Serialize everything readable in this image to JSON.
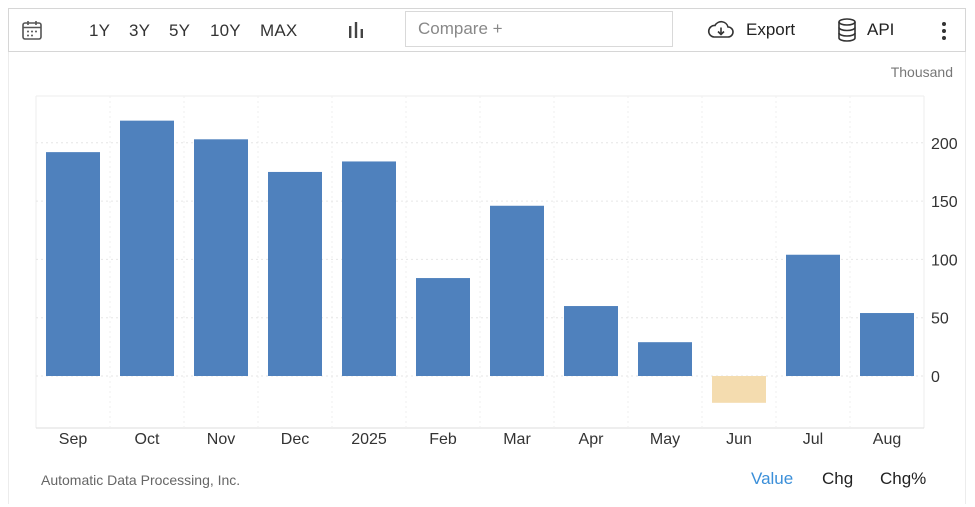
{
  "toolbar": {
    "ranges": [
      "1Y",
      "3Y",
      "5Y",
      "10Y",
      "MAX"
    ],
    "compare_placeholder": "Compare +",
    "export_label": "Export",
    "api_label": "API",
    "icons": [
      "calendar-icon",
      "bar-chart-icon",
      "cloud-download-icon",
      "database-icon",
      "more-vertical-icon"
    ]
  },
  "chart_data": {
    "type": "bar",
    "unit_label": "Thousand",
    "categories": [
      "Sep",
      "Oct",
      "Nov",
      "Dec",
      "2025",
      "Feb",
      "Mar",
      "Apr",
      "May",
      "Jun",
      "Jul",
      "Aug"
    ],
    "values": [
      192,
      219,
      203,
      175,
      184,
      84,
      146,
      60,
      29,
      -23,
      104,
      54
    ],
    "yticks": [
      0,
      50,
      100,
      150,
      200
    ],
    "ylim": [
      -50,
      240
    ],
    "grid": true,
    "positive_color": "#4f81bd",
    "negative_color": "#f4dcaf"
  },
  "footer": {
    "source": "Automatic Data Processing, Inc.",
    "tabs": [
      "Value",
      "Chg",
      "Chg%"
    ],
    "active_tab": "Value"
  },
  "colors": {
    "accent": "#3b8fd9",
    "border": "#d6d6d6"
  }
}
